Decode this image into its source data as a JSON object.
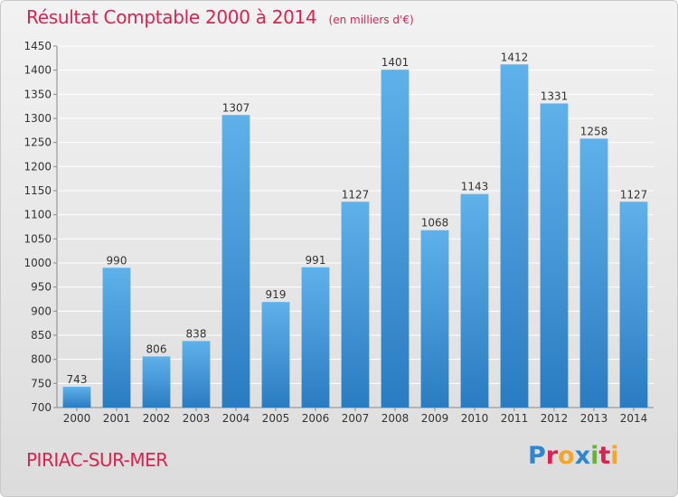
{
  "header": {
    "title": "Résultat Comptable 2000 à 2014",
    "subtitle": "(en milliers d'€)"
  },
  "footer": {
    "commune": "PIRIAC-SUR-MER",
    "logo_text": "Proxiti"
  },
  "colors": {
    "title": "#e0204f",
    "bar_light": "#5fb1ea",
    "bar_dark": "#2a7cc2",
    "logo_letters": [
      "#2f86cf",
      "#e0204f",
      "#f5a623",
      "#2f86cf",
      "#5fb82e",
      "#e0204f",
      "#f5a623"
    ]
  },
  "chart_data": {
    "type": "bar",
    "title": "Résultat Comptable 2000 à 2014",
    "subtitle": "(en milliers d'€)",
    "xlabel": "",
    "ylabel": "",
    "categories": [
      "2000",
      "2001",
      "2002",
      "2003",
      "2004",
      "2005",
      "2006",
      "2007",
      "2008",
      "2009",
      "2010",
      "2011",
      "2012",
      "2013",
      "2014"
    ],
    "values": [
      743,
      990,
      806,
      838,
      1307,
      919,
      991,
      1127,
      1401,
      1068,
      1143,
      1412,
      1331,
      1258,
      1127
    ],
    "ylim": [
      700,
      1450
    ],
    "yticks": [
      700,
      750,
      800,
      850,
      900,
      950,
      1000,
      1050,
      1100,
      1150,
      1200,
      1250,
      1300,
      1350,
      1400,
      1450
    ],
    "grid": true,
    "data_labels": true,
    "legend": "none"
  }
}
